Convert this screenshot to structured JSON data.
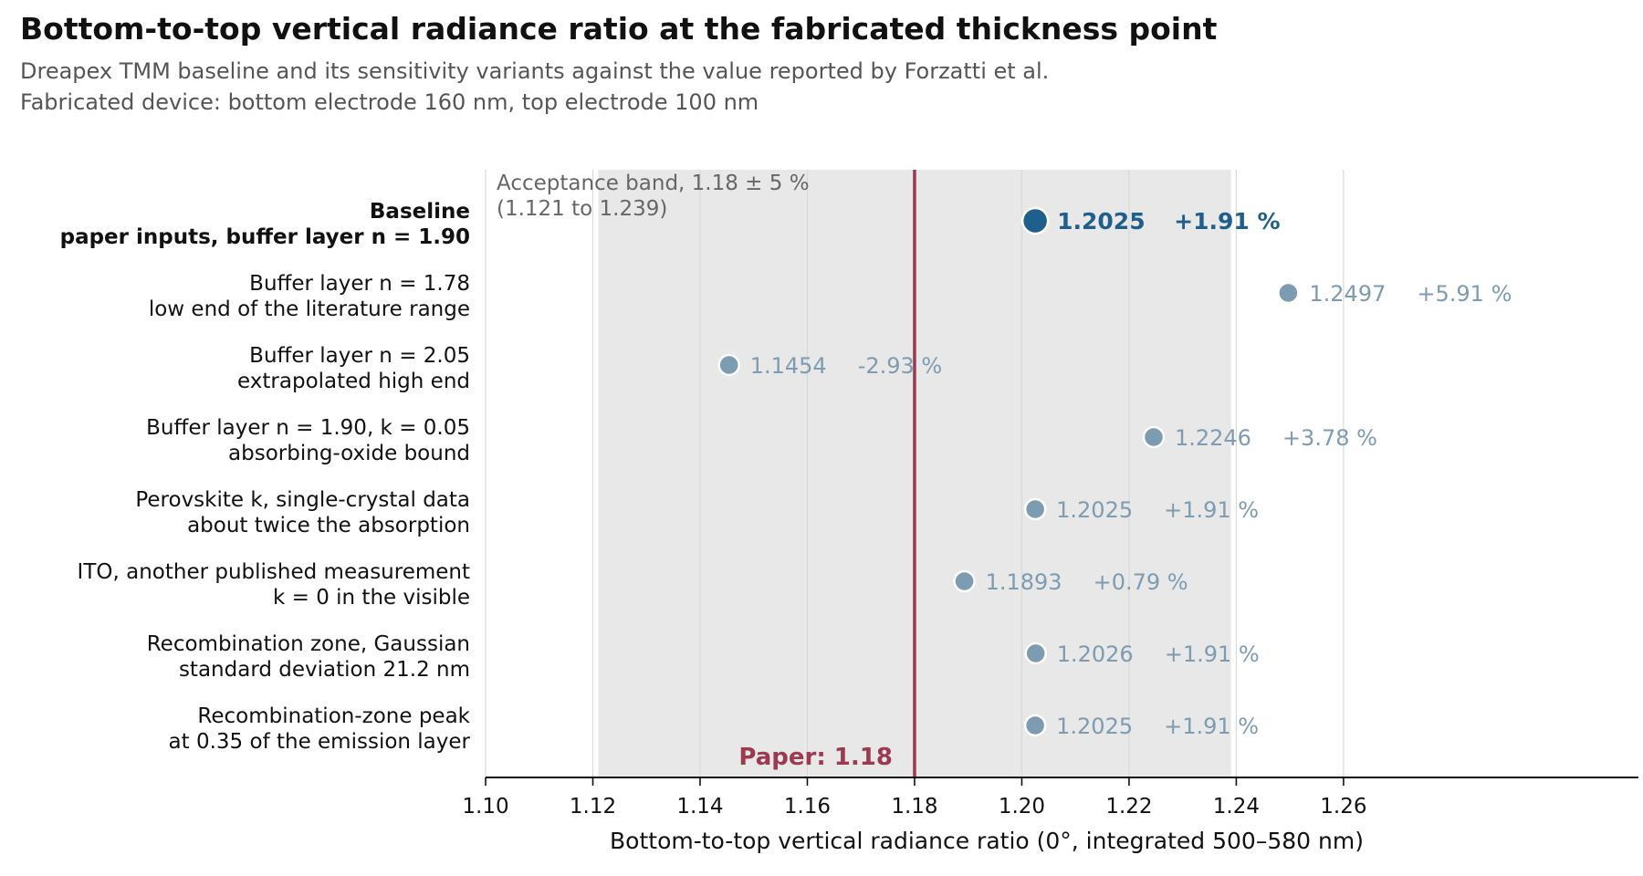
{
  "chart_data": {
    "type": "scatter",
    "title": "Bottom-to-top vertical radiance ratio at the fabricated thickness point",
    "subtitle_lines": [
      "Dreapex TMM baseline and its sensitivity variants against the value reported by Forzatti et al.",
      "Fabricated device: bottom electrode 160 nm, top electrode 100 nm"
    ],
    "xlabel": "Bottom-to-top vertical radiance ratio (0°, integrated 500–580 nm)",
    "xlim": [
      1.1,
      1.315
    ],
    "xticks": [
      "1.10",
      "1.12",
      "1.14",
      "1.16",
      "1.18",
      "1.20",
      "1.22",
      "1.24",
      "1.26"
    ],
    "grid": true,
    "reference": {
      "value": 1.18,
      "label": "Paper: 1.18",
      "color": "#9b3a50"
    },
    "band": {
      "low": 1.121,
      "high": 1.239,
      "label_lines": [
        "Acceptance band, 1.18 ± 5 %",
        "(1.121 to 1.239)"
      ],
      "color": "#e8e8e8"
    },
    "points": [
      {
        "label_lines": [
          "Baseline",
          "paper inputs, buffer layer n = 1.90"
        ],
        "value": 1.2025,
        "value_label": "1.2025",
        "delta_label": "+1.91 %",
        "highlight": true
      },
      {
        "label_lines": [
          "Buffer layer n = 1.78",
          "low end of the literature range"
        ],
        "value": 1.2497,
        "value_label": "1.2497",
        "delta_label": "+5.91 %",
        "highlight": false
      },
      {
        "label_lines": [
          "Buffer layer n = 2.05",
          "extrapolated high end"
        ],
        "value": 1.1454,
        "value_label": "1.1454",
        "delta_label": "-2.93 %",
        "highlight": false
      },
      {
        "label_lines": [
          "Buffer layer n = 1.90, k = 0.05",
          "absorbing-oxide bound"
        ],
        "value": 1.2246,
        "value_label": "1.2246",
        "delta_label": "+3.78 %",
        "highlight": false
      },
      {
        "label_lines": [
          "Perovskite k, single-crystal data",
          "about twice the absorption"
        ],
        "value": 1.2025,
        "value_label": "1.2025",
        "delta_label": "+1.91 %",
        "highlight": false
      },
      {
        "label_lines": [
          "ITO, another published measurement",
          "k = 0 in the visible"
        ],
        "value": 1.1893,
        "value_label": "1.1893",
        "delta_label": "+0.79 %",
        "highlight": false
      },
      {
        "label_lines": [
          "Recombination zone, Gaussian",
          "standard deviation 21.2 nm"
        ],
        "value": 1.2026,
        "value_label": "1.2026",
        "delta_label": "+1.91 %",
        "highlight": false
      },
      {
        "label_lines": [
          "Recombination-zone peak",
          "at 0.35 of the emission layer"
        ],
        "value": 1.2025,
        "value_label": "1.2025",
        "delta_label": "+1.91 %",
        "highlight": false
      }
    ],
    "colors": {
      "highlight": "#1f5f8b",
      "variant": "#7d9bb1",
      "band_text": "#666666",
      "grid": "#d9d9d9"
    }
  }
}
